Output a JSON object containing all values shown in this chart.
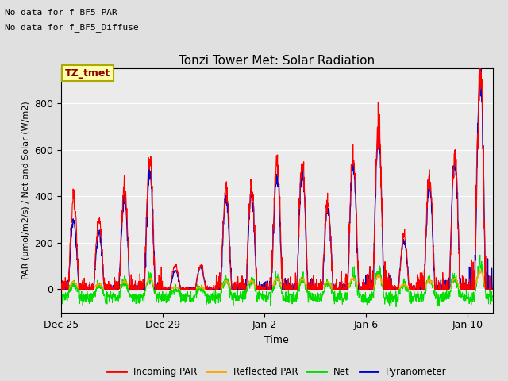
{
  "title": "Tonzi Tower Met: Solar Radiation",
  "subtitle1": "No data for f_BF5_PAR",
  "subtitle2": "No data for f_BF5_Diffuse",
  "legend_label": "TZ_tmet",
  "xlabel": "Time",
  "ylabel": "PAR (μmol/m2/s) / Net and Solar (W/m2)",
  "ylim": [
    -100,
    950
  ],
  "xtick_labels": [
    "Dec 25",
    "Dec 29",
    "Jan 2",
    "Jan 6",
    "Jan 10"
  ],
  "xtick_positions": [
    0,
    4,
    8,
    12,
    16
  ],
  "series_colors": {
    "incoming_par": "#ff0000",
    "reflected_par": "#ffa500",
    "net": "#00dd00",
    "pyranometer": "#0000cc"
  },
  "legend_entries": [
    "Incoming PAR",
    "Reflected PAR",
    "Net",
    "Pyranometer"
  ],
  "bg_color": "#e0e0e0",
  "plot_bg_color": "#ebebeb",
  "n_days": 17,
  "points_per_day": 96,
  "incoming_peaks": [
    380,
    290,
    430,
    560,
    100,
    105,
    430,
    430,
    545,
    540,
    380,
    595,
    715,
    230,
    490,
    580,
    950
  ],
  "pyranometer_peaks": [
    290,
    240,
    390,
    510,
    80,
    95,
    395,
    400,
    500,
    500,
    345,
    540,
    665,
    210,
    450,
    555,
    920
  ],
  "net_day_peaks": [
    40,
    35,
    50,
    70,
    15,
    20,
    55,
    55,
    70,
    65,
    50,
    80,
    90,
    35,
    65,
    75,
    120
  ],
  "net_night_base": -35,
  "net_noise_amp": 15,
  "reflected_ratio": 0.08
}
